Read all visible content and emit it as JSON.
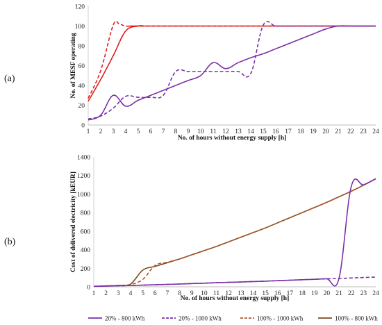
{
  "figure": {
    "panels": [
      {
        "tag": "(a)"
      },
      {
        "tag": "(b)"
      }
    ]
  },
  "legend": {
    "entries": [
      "20% - 800 kWh",
      "20% - 1000 kWh",
      "100% - 1000 kWh",
      "100% - 800 kWh"
    ]
  },
  "chart_data": [
    {
      "type": "line",
      "title": "",
      "xlabel": "No. of hours without energy supply [h]",
      "ylabel": "No. of MESF operating",
      "xlim": [
        1,
        24
      ],
      "ylim": [
        0,
        120
      ],
      "yticks": [
        0,
        20,
        40,
        60,
        80,
        100,
        120
      ],
      "xticks": [
        1,
        2,
        3,
        4,
        5,
        6,
        7,
        8,
        9,
        10,
        11,
        12,
        13,
        14,
        15,
        16,
        17,
        18,
        19,
        20,
        21,
        22,
        23,
        24
      ],
      "grid": false,
      "series": [
        {
          "name": "100% - 800 kWh",
          "color": "#e01e1e",
          "dash": false,
          "x": [
            1,
            2,
            3,
            4,
            5,
            5.5,
            6,
            24
          ],
          "y": [
            24,
            46,
            70,
            95,
            100,
            100,
            100,
            100
          ]
        },
        {
          "name": "100% - 1000 kWh",
          "color": "#e01e1e",
          "dash": true,
          "x": [
            1,
            2,
            3,
            3.5,
            4,
            5,
            6,
            24
          ],
          "y": [
            27,
            55,
            101,
            102,
            100,
            100,
            100,
            100
          ]
        },
        {
          "name": "20% - 800 kWh",
          "color": "#7b2fa8",
          "dash": false,
          "x": [
            1,
            2,
            3,
            4,
            5,
            6,
            7,
            8,
            9,
            10,
            11,
            12,
            13,
            14,
            15,
            16,
            17,
            18,
            19,
            20,
            21,
            22,
            23,
            24
          ],
          "y": [
            5,
            10,
            30,
            19,
            25,
            30,
            35,
            40,
            45,
            50,
            63,
            57,
            63,
            68,
            72,
            77,
            82,
            87,
            92,
            97,
            100,
            100,
            100,
            100
          ]
        },
        {
          "name": "20% - 1000 kWh",
          "color": "#7b2fa8",
          "dash": true,
          "x": [
            1,
            2,
            3,
            4,
            5,
            6,
            7,
            8,
            9,
            10,
            11,
            12,
            13,
            14,
            15,
            16,
            17,
            18,
            19,
            20,
            21,
            22,
            23,
            24
          ],
          "y": [
            6,
            9,
            17,
            29,
            28,
            28,
            30,
            54,
            54,
            54,
            54,
            54,
            54,
            52,
            101,
            100,
            100,
            100,
            100,
            100,
            100,
            100,
            100,
            100
          ]
        }
      ]
    },
    {
      "type": "line",
      "title": "",
      "xlabel": "No. of hours without energy supply [h]",
      "ylabel": "Cost of delivered electricity [kEUR]",
      "xlim": [
        1,
        24
      ],
      "ylim": [
        0,
        1400
      ],
      "yticks": [
        0,
        200,
        400,
        600,
        800,
        1000,
        1200,
        1400
      ],
      "xticks": [
        1,
        2,
        3,
        4,
        5,
        6,
        7,
        8,
        9,
        10,
        11,
        12,
        13,
        14,
        15,
        16,
        17,
        18,
        19,
        20,
        21,
        22,
        23,
        24
      ],
      "grid": false,
      "series": [
        {
          "name": "100% - 800 kWh",
          "color": "#7a4a22",
          "dash": false,
          "x": [
            1,
            2,
            3,
            4,
            5,
            6,
            7,
            8,
            9,
            10,
            11,
            12,
            13,
            14,
            15,
            16,
            17,
            18,
            19,
            20,
            21,
            22,
            23,
            24
          ],
          "y": [
            5,
            10,
            15,
            30,
            180,
            220,
            260,
            300,
            345,
            390,
            435,
            485,
            535,
            585,
            635,
            690,
            745,
            800,
            855,
            910,
            970,
            1030,
            1095,
            1165
          ]
        },
        {
          "name": "100% - 1000 kWh",
          "color": "#b5552a",
          "dash": true,
          "x": [
            1,
            2,
            3,
            4,
            5,
            6,
            7,
            8,
            9,
            10,
            11,
            12,
            13,
            14,
            15,
            16,
            17,
            18,
            19,
            20,
            21,
            22,
            23,
            24
          ],
          "y": [
            5,
            10,
            15,
            25,
            80,
            230,
            265,
            300,
            345,
            390,
            435,
            485,
            535,
            585,
            635,
            690,
            745,
            800,
            855,
            910,
            970,
            1030,
            1095,
            1165
          ]
        },
        {
          "name": "20% - 800 kWh",
          "color": "#7b2fa8",
          "dash": false,
          "x": [
            1,
            2,
            3,
            4,
            5,
            6,
            7,
            8,
            9,
            10,
            11,
            12,
            13,
            14,
            15,
            16,
            17,
            18,
            19,
            20,
            21,
            22,
            23,
            24
          ],
          "y": [
            5,
            8,
            11,
            14,
            18,
            22,
            26,
            30,
            35,
            39,
            44,
            48,
            52,
            57,
            61,
            66,
            71,
            76,
            81,
            87,
            88,
            1080,
            1100,
            1165
          ]
        },
        {
          "name": "20% - 1000 kWh",
          "color": "#7b2fa8",
          "dash": true,
          "x": [
            1,
            2,
            3,
            4,
            5,
            6,
            7,
            8,
            9,
            10,
            11,
            12,
            13,
            14,
            15,
            16,
            17,
            18,
            19,
            20,
            21,
            22,
            23,
            24
          ],
          "y": [
            5,
            8,
            11,
            14,
            18,
            22,
            26,
            30,
            35,
            39,
            44,
            48,
            52,
            57,
            61,
            66,
            71,
            76,
            81,
            86,
            90,
            95,
            100,
            105
          ]
        }
      ]
    }
  ]
}
